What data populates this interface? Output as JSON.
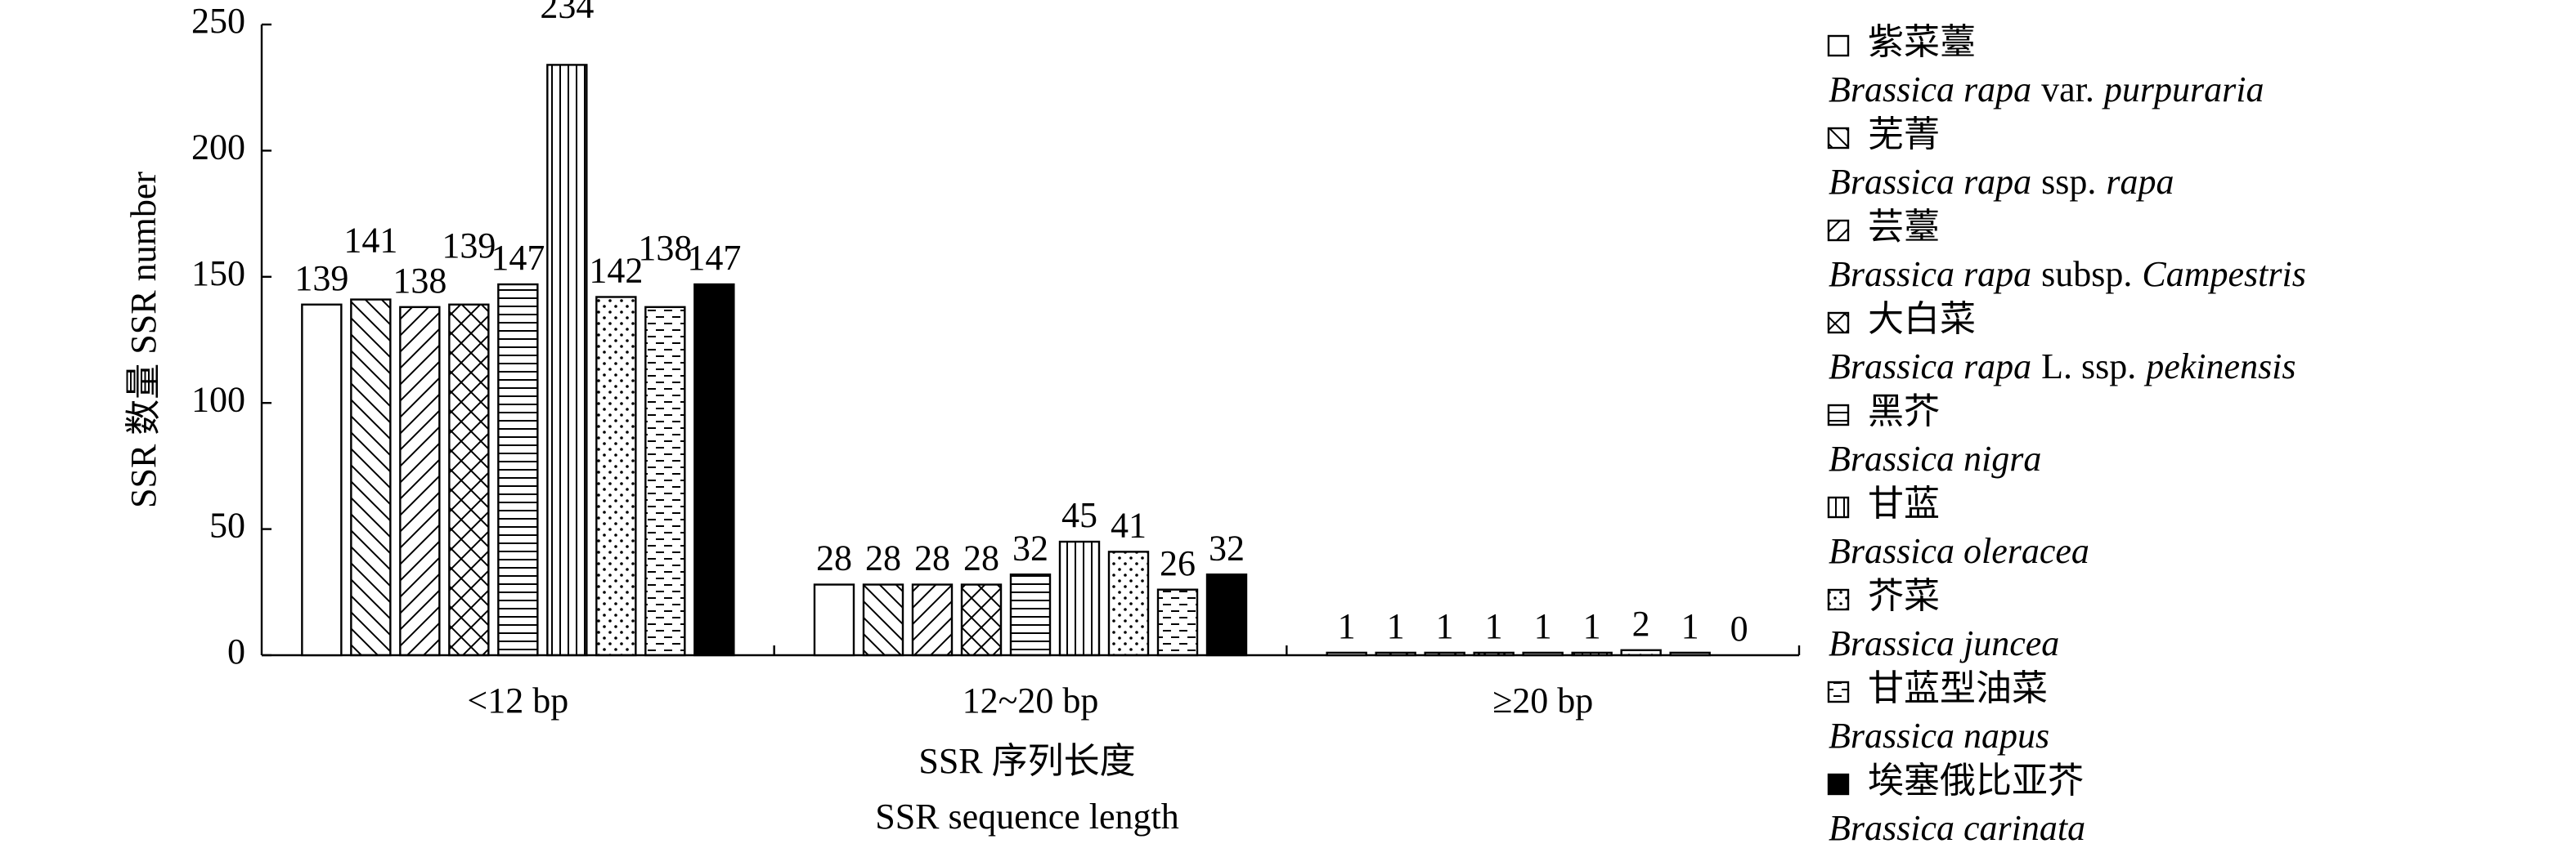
{
  "chart_data": {
    "type": "bar",
    "y_label": "SSR 数量 SSR number",
    "x_label": [
      "SSR 序列长度",
      "SSR sequence length"
    ],
    "categories": [
      "<12 bp",
      "12~20 bp",
      "≥20 bp"
    ],
    "ylim": [
      0,
      250
    ],
    "yticks": [
      0,
      50,
      100,
      150,
      200,
      250
    ],
    "series": [
      {
        "name": "紫菜薹",
        "latin": [
          "Brassica rapa",
          "var.",
          "purpuraria"
        ],
        "pattern": "none",
        "color": "#000000",
        "values": [
          139,
          28,
          1
        ]
      },
      {
        "name": "芜菁",
        "latin": [
          "Brassica rapa",
          "ssp.",
          "rapa"
        ],
        "pattern": "backslash",
        "color": "#000000",
        "values": [
          141,
          28,
          1
        ]
      },
      {
        "name": "芸薹",
        "latin": [
          "Brassica rapa",
          "subsp.",
          "Campestris"
        ],
        "pattern": "slash",
        "color": "#000000",
        "values": [
          138,
          28,
          1
        ]
      },
      {
        "name": "大白菜",
        "latin": [
          "Brassica rapa",
          "L. ssp.",
          "pekinensis"
        ],
        "pattern": "cross",
        "color": "#000000",
        "values": [
          139,
          28,
          1
        ]
      },
      {
        "name": "黑芥",
        "latin": [
          "Brassica nigra"
        ],
        "pattern": "horizontal",
        "color": "#000000",
        "values": [
          147,
          32,
          1
        ]
      },
      {
        "name": "甘蓝",
        "latin": [
          "Brassica oleracea"
        ],
        "pattern": "vertical",
        "color": "#000000",
        "values": [
          234,
          45,
          1
        ]
      },
      {
        "name": "芥菜",
        "latin": [
          "Brassica juncea"
        ],
        "pattern": "dots",
        "color": "#000000",
        "values": [
          142,
          41,
          2
        ]
      },
      {
        "name": "甘蓝型油菜",
        "latin": [
          "Brassica napus"
        ],
        "pattern": "dashes",
        "color": "#000000",
        "values": [
          138,
          26,
          1
        ]
      },
      {
        "name": "埃塞俄比亚芥",
        "latin": [
          "Brassica carinata"
        ],
        "pattern": "solid",
        "color": "#000000",
        "values": [
          147,
          32,
          0
        ]
      }
    ]
  }
}
